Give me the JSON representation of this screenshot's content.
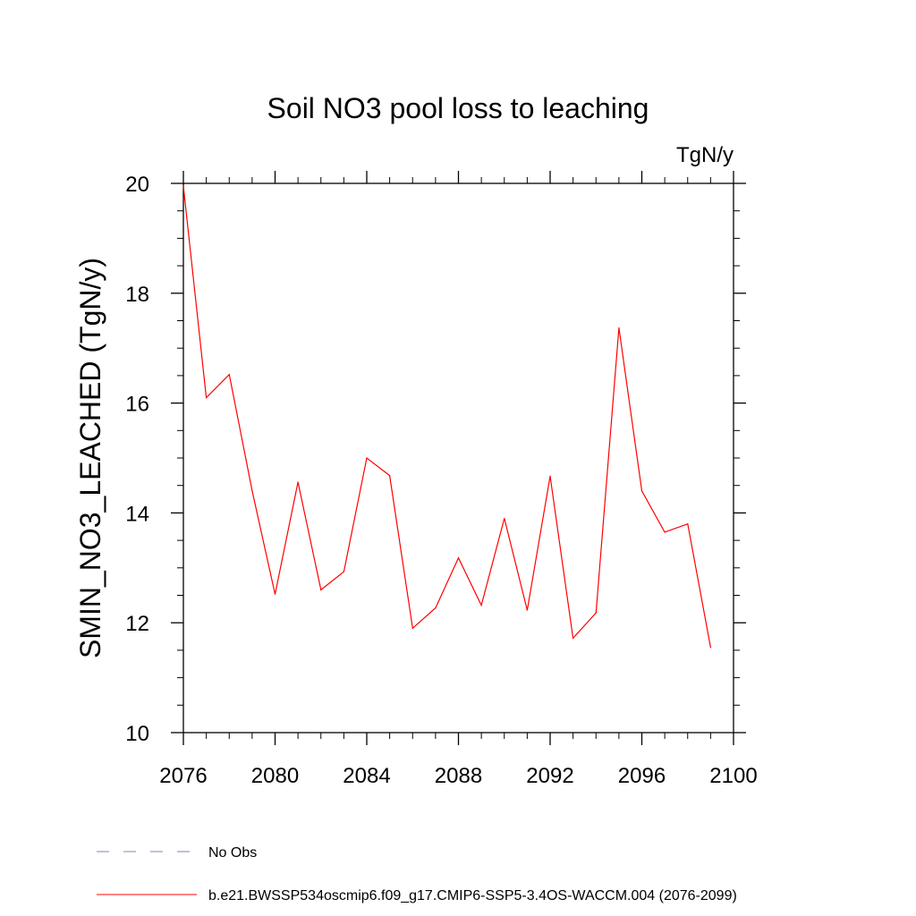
{
  "chart_data": {
    "type": "line",
    "title": "Soil NO3 pool loss to leaching",
    "units": "TgN/y",
    "ylabel": "SMIN_NO3_LEACHED  (TgN/y)",
    "xlabel": "",
    "xlim": [
      2076,
      2100
    ],
    "ylim": [
      10,
      20
    ],
    "x_ticks": [
      2076,
      2080,
      2084,
      2088,
      2092,
      2096,
      2100
    ],
    "y_ticks": [
      10,
      12,
      14,
      16,
      18,
      20
    ],
    "grid": false,
    "legend_position": "bottom",
    "series": [
      {
        "name": "b.e21.BWSSP534oscmip6.f09_g17.CMIP6-SSP5-3.4OS-WACCM.004 (2076-2099)",
        "color": "#ff0000",
        "dash": "solid",
        "x": [
          2076,
          2077,
          2078,
          2079,
          2080,
          2081,
          2082,
          2083,
          2084,
          2085,
          2086,
          2087,
          2088,
          2089,
          2090,
          2091,
          2092,
          2093,
          2094,
          2095,
          2096,
          2097,
          2098,
          2099
        ],
        "values": [
          19.95,
          16.1,
          16.52,
          14.4,
          12.52,
          14.56,
          12.6,
          12.93,
          15.0,
          14.68,
          11.9,
          12.27,
          13.18,
          12.32,
          13.9,
          12.23,
          14.67,
          11.72,
          12.18,
          17.37,
          14.4,
          13.65,
          13.8,
          11.55
        ]
      }
    ],
    "legend": [
      {
        "label": "No Obs",
        "color": "#8a7fb8",
        "dash": "dashed"
      },
      {
        "label": "b.e21.BWSSP534oscmip6.f09_g17.CMIP6-SSP5-3.4OS-WACCM.004 (2076-2099)",
        "color": "#ff0000",
        "dash": "solid"
      }
    ]
  }
}
